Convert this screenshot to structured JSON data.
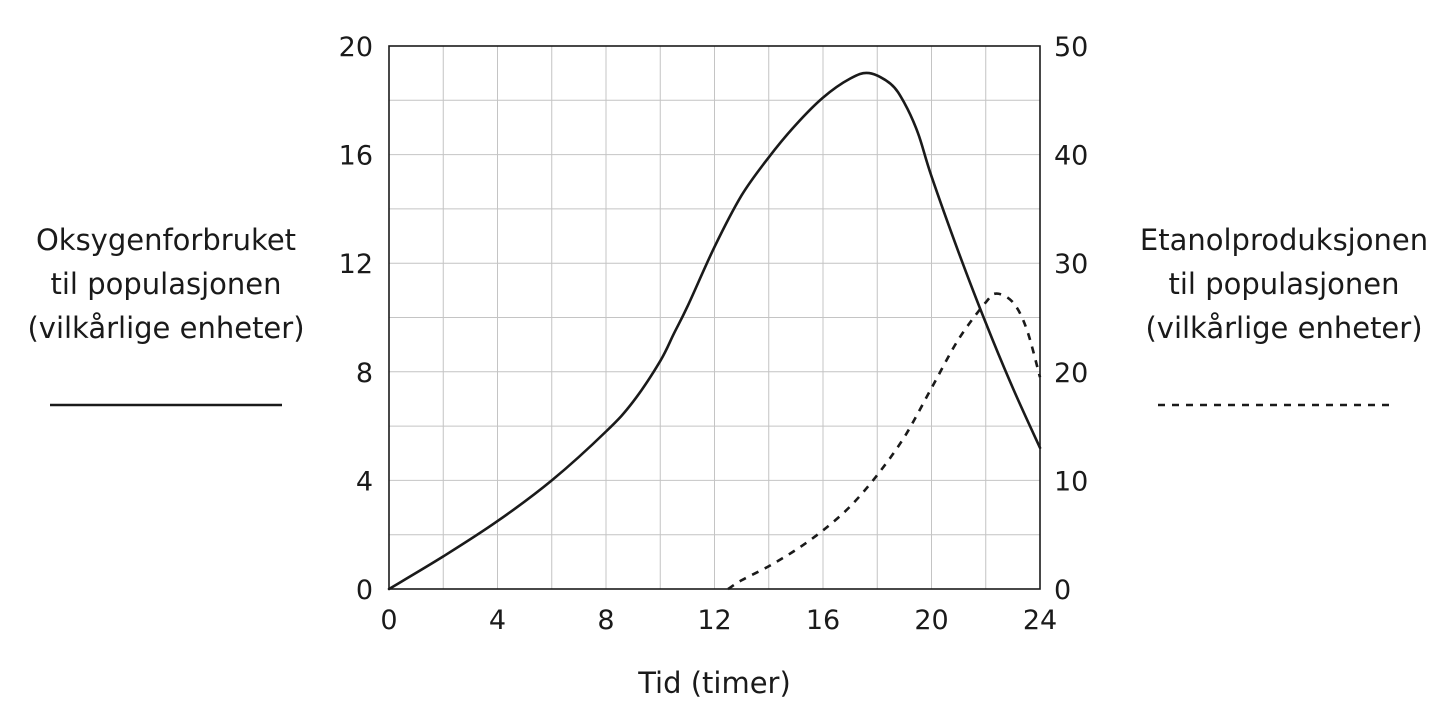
{
  "chart_data": {
    "type": "line",
    "xlabel": "Tid (timer)",
    "x_ticks": [
      "0",
      "4",
      "8",
      "12",
      "16",
      "20",
      "24"
    ],
    "xlim": [
      0,
      24
    ],
    "y_left": {
      "label_lines": [
        "Oksygenforbruket",
        "til populasjonen",
        "(vilkårlige enheter)"
      ],
      "ticks": [
        "0",
        "4",
        "8",
        "12",
        "16",
        "20"
      ],
      "lim": [
        0,
        20
      ]
    },
    "y_right": {
      "label_lines": [
        "Etanolproduksjonen",
        "til populasjonen",
        "(vilkårlige enheter)"
      ],
      "ticks": [
        "0",
        "10",
        "20",
        "30",
        "40",
        "50"
      ],
      "lim": [
        0,
        50
      ]
    },
    "grid": true,
    "series": [
      {
        "axis": "left",
        "style": "solid",
        "color": "#1a1a1a",
        "x": [
          0,
          2,
          4,
          6,
          8,
          9,
          10,
          10.5,
          11,
          12,
          13,
          14,
          15,
          16,
          17,
          17.7,
          18.5,
          19,
          19.5,
          20,
          21,
          22,
          23,
          24
        ],
        "y": [
          0,
          1.2,
          2.5,
          4.0,
          5.8,
          6.9,
          8.4,
          9.4,
          10.4,
          12.6,
          14.5,
          15.9,
          17.1,
          18.1,
          18.8,
          19.0,
          18.6,
          17.9,
          16.8,
          15.2,
          12.4,
          9.8,
          7.4,
          5.2
        ]
      },
      {
        "axis": "right",
        "style": "dashed",
        "color": "#1a1a1a",
        "x": [
          12.5,
          13,
          14,
          15,
          16,
          17,
          18,
          19,
          20,
          21,
          22,
          22.4,
          23,
          23.5,
          24
        ],
        "y": [
          0,
          0.8,
          2.1,
          3.6,
          5.4,
          7.6,
          10.5,
          14.0,
          18.5,
          23.0,
          26.4,
          27.2,
          26.4,
          24.0,
          19.5
        ]
      }
    ]
  }
}
